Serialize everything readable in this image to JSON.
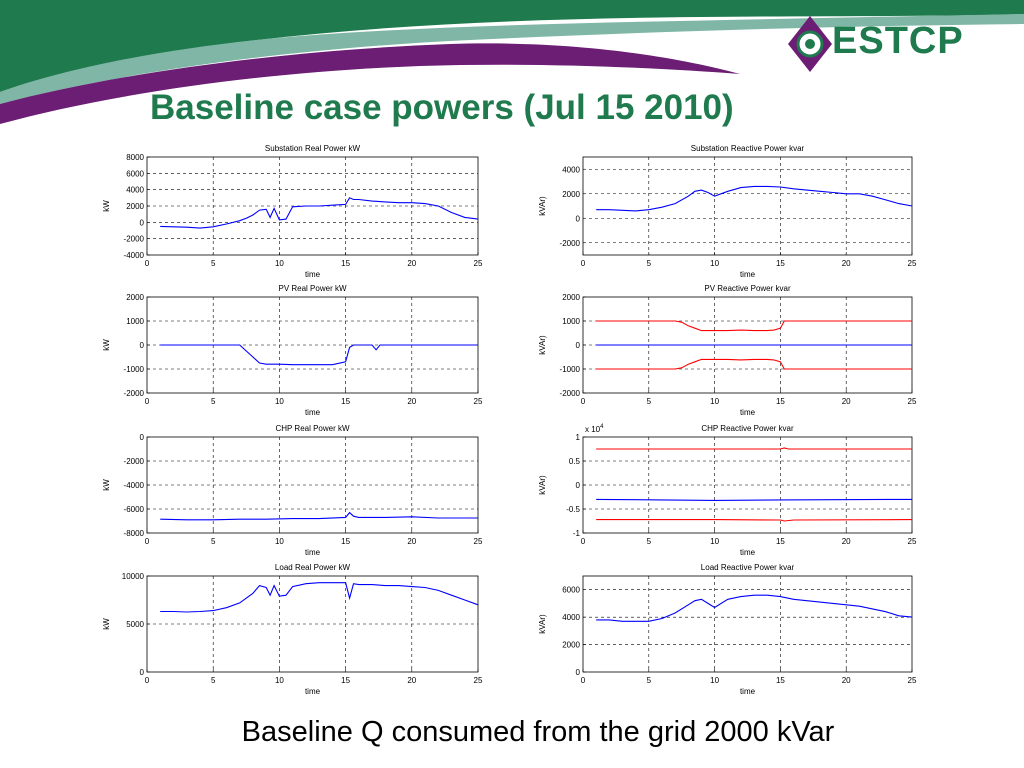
{
  "slide": {
    "title": "Baseline case powers (Jul 15 2010)",
    "logo_text": "ESTCP",
    "caption": "Baseline Q consumed from the grid 2000 kVar",
    "colors": {
      "title": "#1f7a4e",
      "banner_green": "#1f7a4e",
      "banner_purple": "#6b1e74",
      "blue_series": "#0000ff",
      "red_series": "#ff0000"
    },
    "icons": [
      "estcp-emblem-icon"
    ]
  },
  "chart_data": [
    {
      "type": "line",
      "title": "Substation Real Power kW",
      "xlabel": "time",
      "ylabel": "kW",
      "xlim": [
        0,
        25
      ],
      "ylim": [
        -4000,
        8000
      ],
      "xticks": [
        0,
        5,
        10,
        15,
        20,
        25
      ],
      "yticks": [
        -4000,
        -2000,
        0,
        2000,
        4000,
        6000,
        8000
      ],
      "ytick_labels": [
        "-4000",
        "-2000",
        "0",
        "2000",
        "4000",
        "6000",
        "8000"
      ],
      "grid": true,
      "series": [
        {
          "color": "#0000ff",
          "x": [
            1,
            2,
            3,
            4,
            5,
            6,
            7,
            7.5,
            8,
            8.5,
            9,
            9.3,
            9.6,
            10,
            10.5,
            11,
            12,
            13,
            14,
            15,
            15.3,
            15.6,
            16,
            17,
            18,
            19,
            20,
            21,
            22,
            23,
            24,
            25
          ],
          "y": [
            -500,
            -550,
            -600,
            -700,
            -550,
            -200,
            200,
            500,
            900,
            1500,
            1600,
            600,
            1700,
            300,
            400,
            1900,
            2000,
            2000,
            2100,
            2200,
            3000,
            2800,
            2800,
            2600,
            2500,
            2400,
            2400,
            2300,
            2000,
            1200,
            600,
            400
          ]
        }
      ]
    },
    {
      "type": "line",
      "title": "Substation Reactive Power kvar",
      "xlabel": "time",
      "ylabel": "kVAr)",
      "xlim": [
        0,
        25
      ],
      "ylim": [
        -3000,
        5000
      ],
      "xticks": [
        0,
        5,
        10,
        15,
        20,
        25
      ],
      "yticks": [
        -2000,
        0,
        2000,
        4000
      ],
      "ytick_labels": [
        "-2000",
        "0",
        "2000",
        "4000"
      ],
      "grid": true,
      "series": [
        {
          "color": "#0000ff",
          "x": [
            1,
            2,
            3,
            4,
            5,
            6,
            7,
            8,
            8.5,
            9,
            9.5,
            10,
            11,
            12,
            13,
            14,
            15,
            16,
            17,
            18,
            19,
            20,
            21,
            22,
            23,
            24,
            25
          ],
          "y": [
            700,
            700,
            650,
            600,
            700,
            900,
            1200,
            1800,
            2200,
            2300,
            2100,
            1800,
            2200,
            2500,
            2600,
            2600,
            2550,
            2400,
            2300,
            2200,
            2100,
            2000,
            2000,
            1800,
            1500,
            1200,
            1000
          ]
        }
      ]
    },
    {
      "type": "line",
      "title": "PV Real Power kW",
      "xlabel": "time",
      "ylabel": "kW",
      "xlim": [
        0,
        25
      ],
      "ylim": [
        -2000,
        2000
      ],
      "xticks": [
        0,
        5,
        10,
        15,
        20,
        25
      ],
      "yticks": [
        -2000,
        -1000,
        0,
        1000,
        2000
      ],
      "ytick_labels": [
        "-2000",
        "-1000",
        "0",
        "1000",
        "2000"
      ],
      "grid": true,
      "series": [
        {
          "color": "#0000ff",
          "x": [
            1,
            2,
            3,
            4,
            5,
            6,
            7,
            7.5,
            8,
            8.5,
            9,
            10,
            11,
            12,
            13,
            14,
            15,
            15.3,
            15.6,
            16,
            17,
            17.3,
            17.6,
            18,
            19,
            20,
            21,
            22,
            23,
            24,
            25
          ],
          "y": [
            0,
            0,
            0,
            0,
            0,
            0,
            0,
            -250,
            -500,
            -750,
            -800,
            -800,
            -820,
            -820,
            -820,
            -820,
            -700,
            -100,
            0,
            0,
            0,
            -200,
            0,
            0,
            0,
            0,
            0,
            0,
            0,
            0,
            0
          ]
        }
      ]
    },
    {
      "type": "line",
      "title": "PV Reactive Power kvar",
      "xlabel": "time",
      "ylabel": "kVAr)",
      "xlim": [
        0,
        25
      ],
      "ylim": [
        -2000,
        2000
      ],
      "xticks": [
        0,
        5,
        10,
        15,
        20,
        25
      ],
      "yticks": [
        -2000,
        -1000,
        0,
        1000,
        2000
      ],
      "ytick_labels": [
        "-2000",
        "-1000",
        "0",
        "1000",
        "2000"
      ],
      "grid": true,
      "series": [
        {
          "color": "#ff0000",
          "x": [
            1,
            7,
            7.5,
            8,
            8.5,
            9,
            10,
            11,
            12,
            13,
            14,
            14.5,
            15,
            15.3,
            16,
            20,
            25
          ],
          "y": [
            1000,
            1000,
            950,
            800,
            700,
            600,
            600,
            600,
            620,
            600,
            600,
            620,
            700,
            1000,
            1000,
            1000,
            1000
          ]
        },
        {
          "color": "#0000ff",
          "x": [
            1,
            25
          ],
          "y": [
            0,
            0
          ]
        },
        {
          "color": "#ff0000",
          "x": [
            1,
            7,
            7.5,
            8,
            8.5,
            9,
            10,
            11,
            12,
            13,
            14,
            14.5,
            15,
            15.3,
            16,
            20,
            25
          ],
          "y": [
            -1000,
            -1000,
            -950,
            -800,
            -700,
            -600,
            -600,
            -600,
            -620,
            -600,
            -600,
            -620,
            -700,
            -1000,
            -1000,
            -1000,
            -1000
          ]
        }
      ]
    },
    {
      "type": "line",
      "title": "CHP Real Power kW",
      "xlabel": "time",
      "ylabel": "kW",
      "xlim": [
        0,
        25
      ],
      "ylim": [
        -8000,
        0
      ],
      "xticks": [
        0,
        5,
        10,
        15,
        20,
        25
      ],
      "yticks": [
        -8000,
        -6000,
        -4000,
        -2000,
        0
      ],
      "ytick_labels": [
        "-8000",
        "-6000",
        "-4000",
        "-2000",
        "0"
      ],
      "grid": true,
      "series": [
        {
          "color": "#0000ff",
          "x": [
            1,
            3,
            5,
            7,
            9,
            11,
            13,
            15,
            15.3,
            15.6,
            16,
            18,
            20,
            22,
            25
          ],
          "y": [
            -6850,
            -6900,
            -6900,
            -6850,
            -6850,
            -6800,
            -6800,
            -6700,
            -6300,
            -6600,
            -6700,
            -6700,
            -6650,
            -6750,
            -6750
          ]
        }
      ]
    },
    {
      "type": "line",
      "title": "CHP Reactive Power kvar",
      "xlabel": "time",
      "ylabel": "kVAr)",
      "xlim": [
        0,
        25
      ],
      "ylim": [
        -10000,
        10000
      ],
      "xticks": [
        0,
        5,
        10,
        15,
        20,
        25
      ],
      "yticks": [
        -10000,
        -5000,
        0,
        5000,
        10000
      ],
      "ytick_labels": [
        "-1",
        "-0.5",
        "0",
        "0.5",
        "1"
      ],
      "y_multiplier": "x 10^4",
      "grid": true,
      "series": [
        {
          "color": "#ff0000",
          "x": [
            1,
            15,
            15.3,
            15.6,
            16,
            25
          ],
          "y": [
            7500,
            7500,
            7700,
            7500,
            7500,
            7500
          ]
        },
        {
          "color": "#0000ff",
          "x": [
            1,
            10,
            15,
            25
          ],
          "y": [
            -3000,
            -3200,
            -3100,
            -3000
          ]
        },
        {
          "color": "#ff0000",
          "x": [
            1,
            10,
            15,
            15.3,
            16,
            25
          ],
          "y": [
            -7200,
            -7200,
            -7300,
            -7500,
            -7300,
            -7200
          ]
        }
      ]
    },
    {
      "type": "line",
      "title": "Load Real Power kW",
      "xlabel": "time",
      "ylabel": "kW",
      "xlim": [
        0,
        25
      ],
      "ylim": [
        0,
        10000
      ],
      "xticks": [
        0,
        5,
        10,
        15,
        20,
        25
      ],
      "yticks": [
        0,
        5000,
        10000
      ],
      "ytick_labels": [
        "0",
        "5000",
        "10000"
      ],
      "grid": true,
      "series": [
        {
          "color": "#0000ff",
          "x": [
            1,
            2,
            3,
            4,
            5,
            6,
            7,
            8,
            8.5,
            9,
            9.3,
            9.6,
            10,
            10.5,
            11,
            12,
            13,
            14,
            15,
            15.3,
            15.6,
            16,
            17,
            18,
            19,
            20,
            21,
            22,
            23,
            24,
            25
          ],
          "y": [
            6300,
            6300,
            6250,
            6300,
            6400,
            6700,
            7200,
            8200,
            9000,
            8800,
            8000,
            9000,
            7900,
            8000,
            8900,
            9200,
            9300,
            9300,
            9300,
            7700,
            9200,
            9100,
            9100,
            9000,
            9000,
            8900,
            8800,
            8500,
            8000,
            7500,
            7000
          ]
        }
      ]
    },
    {
      "type": "line",
      "title": "Load Reactive Power kvar",
      "xlabel": "time",
      "ylabel": "kVAr)",
      "xlim": [
        0,
        25
      ],
      "ylim": [
        0,
        7000
      ],
      "xticks": [
        0,
        5,
        10,
        15,
        20,
        25
      ],
      "yticks": [
        0,
        2000,
        4000,
        6000
      ],
      "ytick_labels": [
        "0",
        "2000",
        "4000",
        "6000"
      ],
      "grid": true,
      "series": [
        {
          "color": "#0000ff",
          "x": [
            1,
            2,
            3,
            4,
            5,
            6,
            7,
            8,
            8.5,
            9,
            9.5,
            10,
            11,
            12,
            13,
            14,
            15,
            16,
            17,
            18,
            19,
            20,
            21,
            22,
            23,
            24,
            25
          ],
          "y": [
            3800,
            3800,
            3700,
            3700,
            3700,
            3900,
            4300,
            4900,
            5200,
            5300,
            5000,
            4700,
            5300,
            5500,
            5600,
            5600,
            5500,
            5300,
            5200,
            5100,
            5000,
            4900,
            4800,
            4600,
            4400,
            4100,
            4000
          ]
        }
      ]
    }
  ]
}
